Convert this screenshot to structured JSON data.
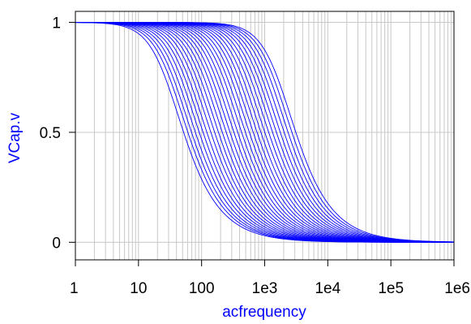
{
  "chart_data": {
    "type": "line",
    "xlabel": "acfrequency",
    "ylabel": "VCap.v",
    "x_scale": "log",
    "xlim": [
      1,
      1000000
    ],
    "ylim": [
      -0.08,
      1.05
    ],
    "x_ticks": [
      "1",
      "10",
      "100",
      "1e3",
      "1e4",
      "1e5",
      "1e6"
    ],
    "y_ticks": [
      "0",
      "0.5",
      "1"
    ],
    "grid": true,
    "line_color": "#0000ff",
    "axis_label_color": "#0000ff",
    "grid_color": "#c8c8c8",
    "series_model": "first-order low-pass |V| = 1/sqrt(1+(f/fc)^2)",
    "cutoff_frequencies": [
      30,
      35,
      40,
      46,
      53,
      61,
      70,
      81,
      93,
      107,
      123,
      142,
      163,
      188,
      216,
      249,
      286,
      330,
      380,
      437,
      503,
      580,
      668,
      770,
      886,
      1020,
      1175,
      1355,
      1560,
      1800
    ]
  }
}
